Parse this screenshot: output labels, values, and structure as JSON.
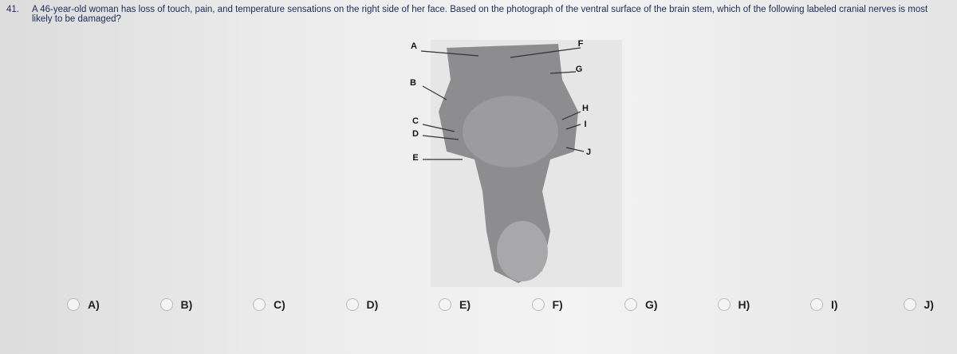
{
  "question": {
    "number": "41.",
    "text": "A 46-year-old woman has loss of touch, pain, and temperature sensations on the right side of her face. Based on the photograph of the ventral surface of the brain stem, which of the following labeled cranial nerves is most likely to be damaged?"
  },
  "figure": {
    "labels": [
      "A",
      "B",
      "C",
      "D",
      "E",
      "F",
      "G",
      "H",
      "I",
      "J"
    ]
  },
  "options": [
    "A)",
    "B)",
    "C)",
    "D)",
    "E)",
    "F)",
    "G)",
    "H)",
    "I)",
    "J)"
  ]
}
